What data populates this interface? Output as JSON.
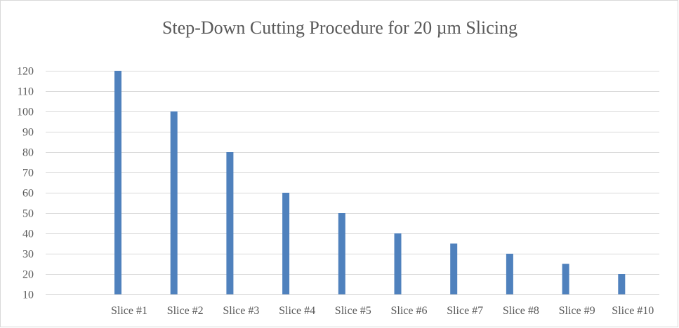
{
  "chart_data": {
    "type": "bar",
    "title": "Step-Down Cutting Procedure for 20 µm Slicing",
    "xlabel": "",
    "ylabel": "",
    "categories": [
      "Slice #1",
      "Slice #2",
      "Slice #3",
      "Slice #4",
      "Slice #5",
      "Slice #6",
      "Slice #7",
      "Slice #8",
      "Slice #9",
      "Slice #10"
    ],
    "values": [
      120,
      100,
      80,
      60,
      50,
      40,
      35,
      30,
      25,
      20
    ],
    "ylim": [
      10,
      120
    ],
    "yticks": [
      "10",
      "20",
      "30",
      "40",
      "50",
      "60",
      "70",
      "80",
      "90",
      "100",
      "110",
      "120"
    ],
    "grid": true,
    "legend": "none",
    "colors": {
      "bar": "#4f81bd",
      "grid": "#d9d9d9",
      "text": "#595959"
    }
  }
}
